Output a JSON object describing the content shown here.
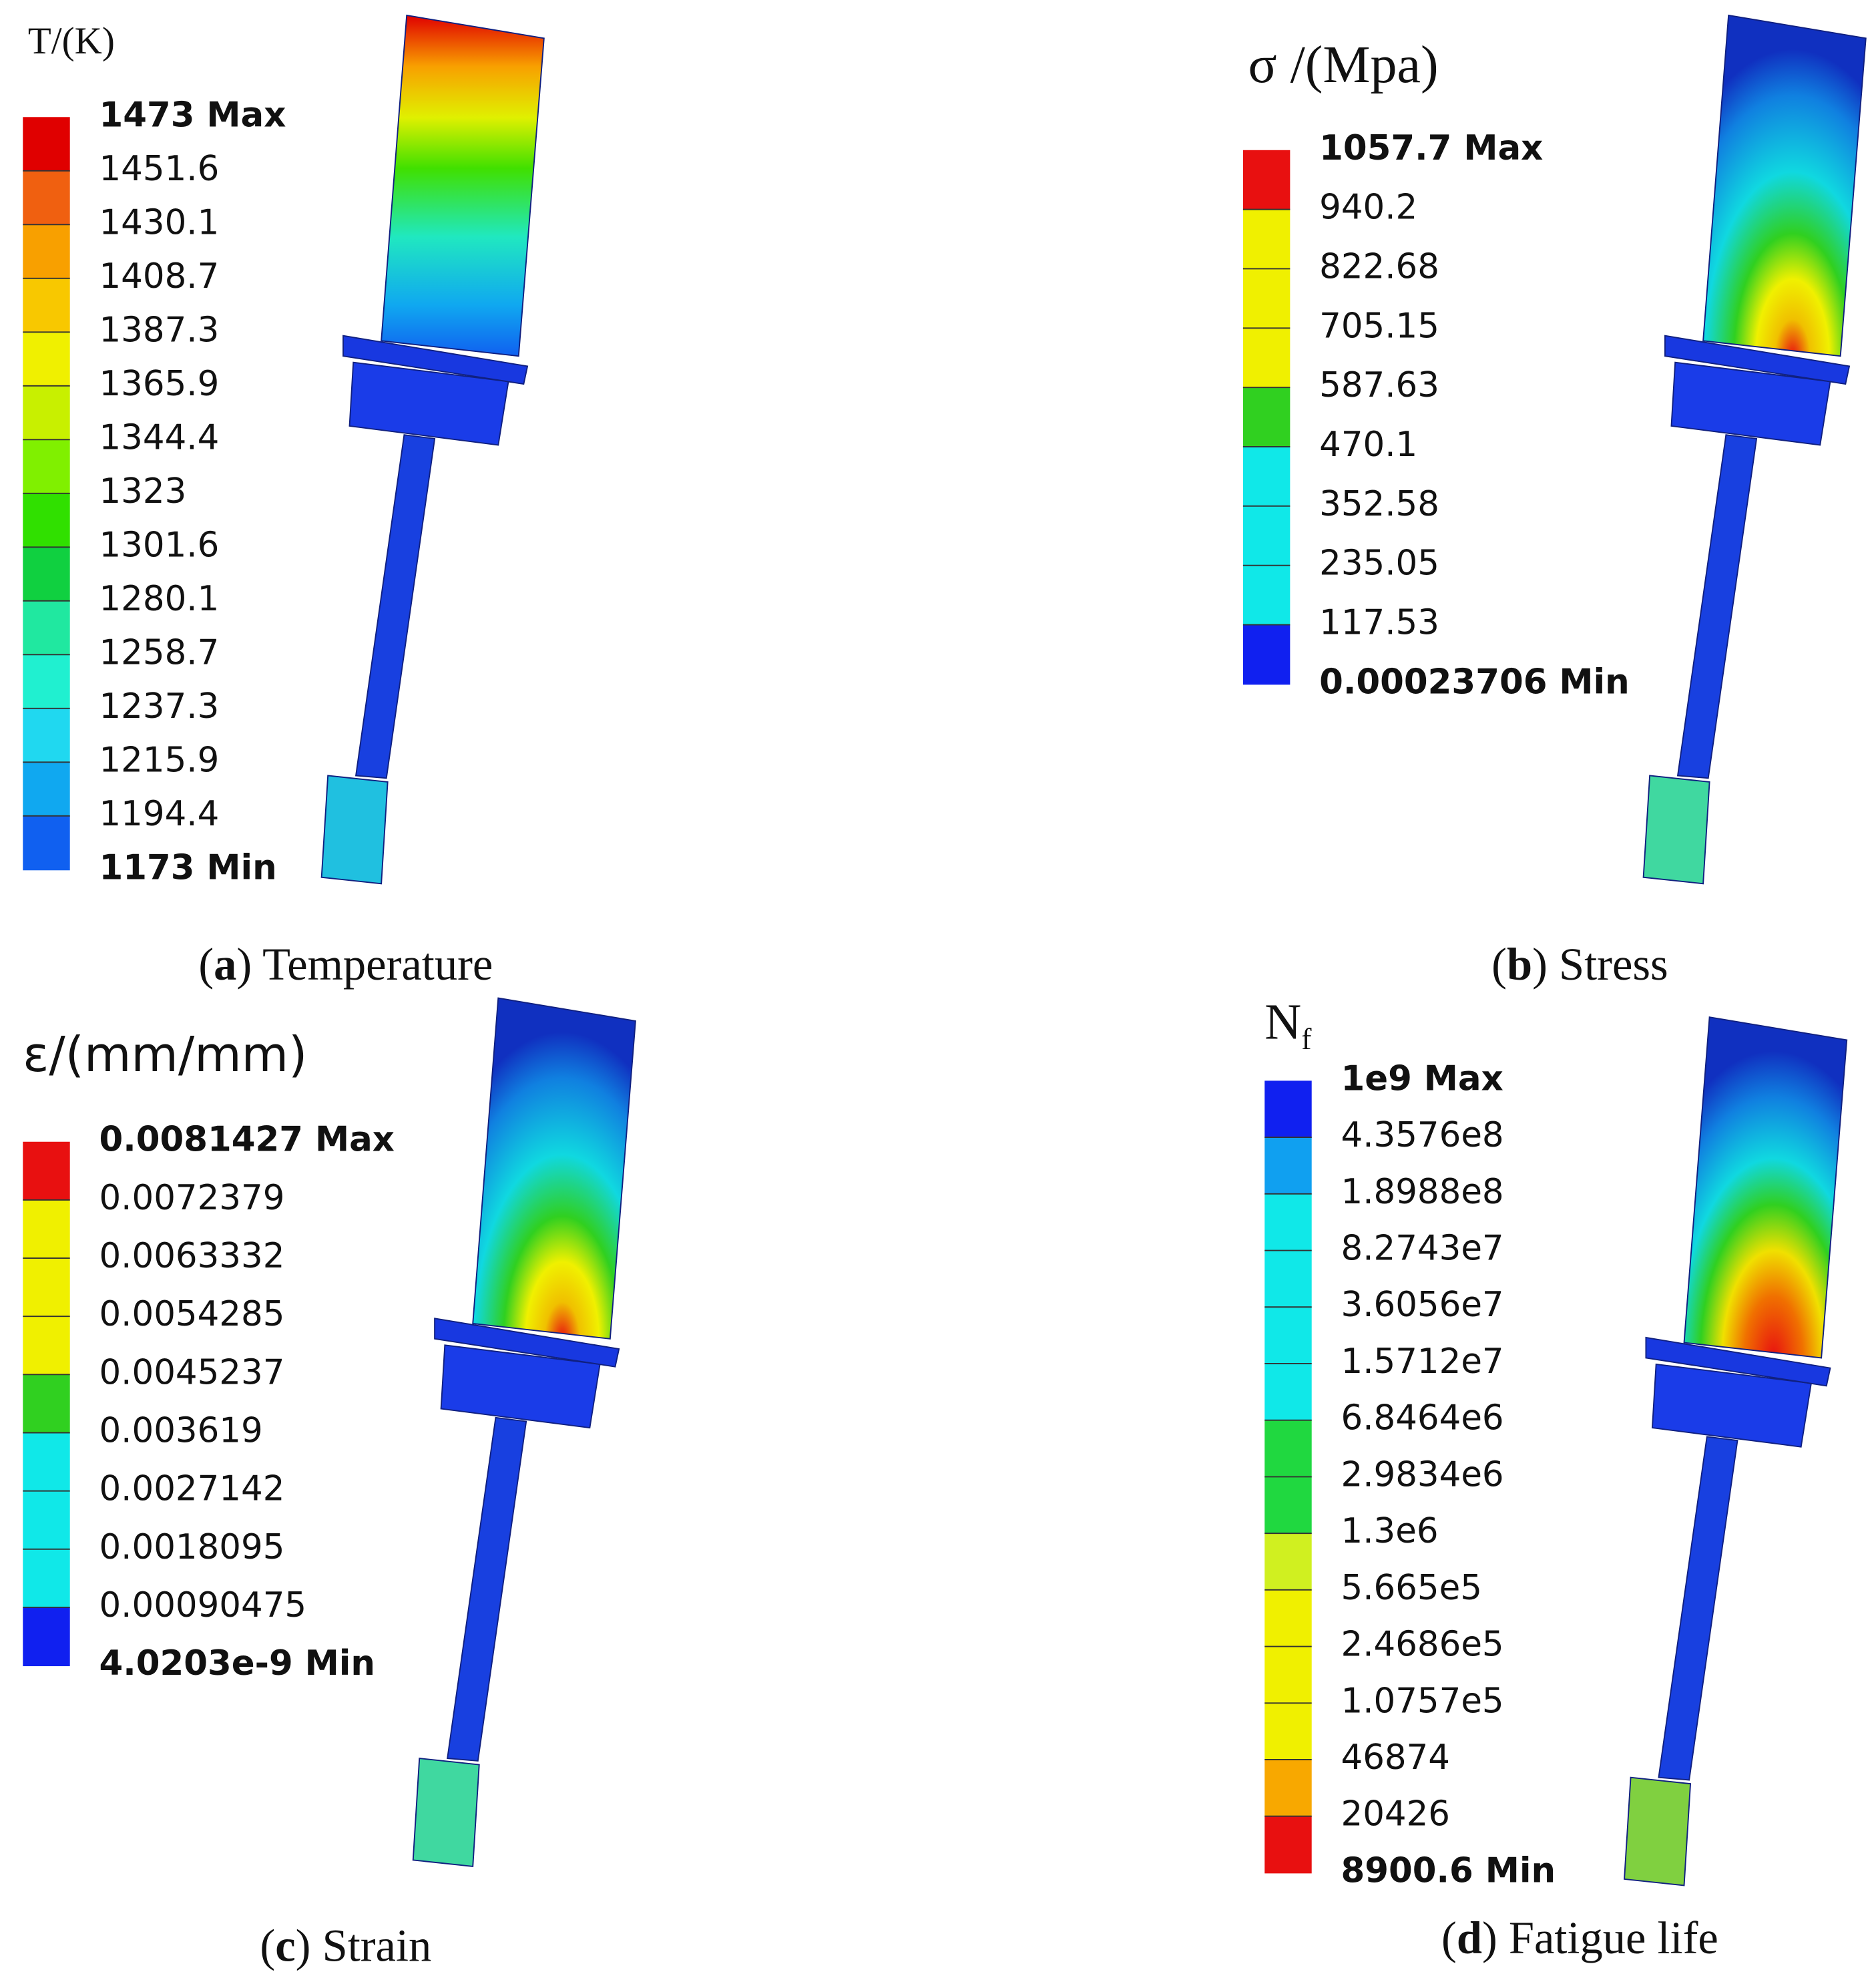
{
  "panels": [
    {
      "title": "T/(K)",
      "legend": {
        "labels": [
          "1473 Max",
          "1451.6",
          "1430.1",
          "1408.7",
          "1387.3",
          "1365.9",
          "1344.4",
          "1323",
          "1301.6",
          "1280.1",
          "1258.7",
          "1237.3",
          "1215.9",
          "1194.4",
          "1173 Min"
        ],
        "colors": [
          "#e00000",
          "#f06010",
          "#f8a000",
          "#f8c800",
          "#f0f000",
          "#c8f000",
          "#80f000",
          "#30e000",
          "#10d040",
          "#20e8a0",
          "#20f0d0",
          "#20d8f0",
          "#10a8f0",
          "#1060f0"
        ]
      },
      "caption": [
        "(",
        "a",
        ") Temperature"
      ]
    },
    {
      "title": "σ /(Mpa)",
      "legend": {
        "labels": [
          "1057.7 Max",
          "940.2",
          "822.68",
          "705.15",
          "587.63",
          "470.1",
          "352.58",
          "235.05",
          "117.53",
          "0.00023706 Min"
        ],
        "colors": [
          "#e81010",
          "#f0f000",
          "#f0f000",
          "#f0f000",
          "#30d020",
          "#10e8e8",
          "#10e8e8",
          "#10e8e8",
          "#1020f0"
        ]
      },
      "caption": [
        "(",
        "b",
        ") Stress"
      ]
    },
    {
      "title": "ε/(mm/mm)",
      "legend": {
        "labels": [
          "0.0081427 Max",
          "0.0072379",
          "0.0063332",
          "0.0054285",
          "0.0045237",
          "0.003619",
          "0.0027142",
          "0.0018095",
          "0.00090475",
          "4.0203e-9 Min"
        ],
        "colors": [
          "#e81010",
          "#f0f000",
          "#f0f000",
          "#f0f000",
          "#30d020",
          "#10e8e8",
          "#10e8e8",
          "#10e8e8",
          "#1020f0"
        ]
      },
      "caption": [
        "(",
        "c",
        ") Strain"
      ]
    },
    {
      "title": "N",
      "title_subscript": "f",
      "legend": {
        "labels": [
          "1e9 Max",
          "4.3576e8",
          "1.8988e8",
          "8.2743e7",
          "3.6056e7",
          "1.5712e7",
          "6.8464e6",
          "2.9834e6",
          "1.3e6",
          "5.665e5",
          "2.4686e5",
          "1.0757e5",
          "46874",
          "20426",
          "8900.6 Min"
        ],
        "colors": [
          "#1020f0",
          "#10a0f0",
          "#10e8e8",
          "#10e8e8",
          "#10e8e8",
          "#10e8e8",
          "#20d840",
          "#20d840",
          "#d0f020",
          "#f0f000",
          "#f0f000",
          "#f0f000",
          "#f8a800",
          "#e81010"
        ]
      },
      "caption": [
        "(",
        "d",
        ") Fatigue life"
      ]
    }
  ]
}
